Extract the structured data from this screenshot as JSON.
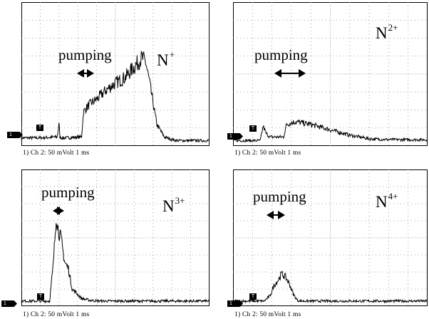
{
  "chart_data": [
    {
      "type": "line",
      "ion_label": "N",
      "charge": "+",
      "annotation": "pumping",
      "scale_text": "1) Ch 2:   50 mVolt  1 ms",
      "channel_marker": "1",
      "trigger_marker": "T",
      "xlim": [
        0,
        10
      ],
      "ylim": [
        0,
        8
      ],
      "x": [
        0,
        0.9,
        1.9,
        2.0,
        2.05,
        2.15,
        2.3,
        3.2,
        3.3,
        3.6,
        4.0,
        4.5,
        5.0,
        5.5,
        6.0,
        6.4,
        6.6,
        6.8,
        7.0,
        7.2,
        7.6,
        8.2,
        10
      ],
      "y": [
        0.45,
        0.45,
        0.5,
        1.2,
        0.5,
        0.45,
        0.45,
        0.5,
        1.9,
        2.3,
        2.6,
        3.1,
        3.5,
        3.8,
        4.4,
        4.9,
        4.7,
        3.6,
        2.4,
        1.2,
        0.5,
        0.3,
        0.3
      ]
    },
    {
      "type": "line",
      "ion_label": "N",
      "charge": "2+",
      "annotation": "pumping",
      "scale_text": "1) Ch 2:   50 mVolt  1 ms",
      "channel_marker": "1",
      "trigger_marker": "T",
      "xlim": [
        0,
        10
      ],
      "ylim": [
        0,
        8
      ],
      "x": [
        0,
        1.4,
        1.55,
        1.7,
        1.9,
        2.6,
        2.75,
        3.2,
        4.0,
        5.0,
        6.0,
        7.0,
        8.0,
        10
      ],
      "y": [
        0.3,
        0.3,
        1.1,
        0.7,
        0.5,
        0.5,
        1.2,
        1.35,
        1.2,
        0.9,
        0.6,
        0.4,
        0.35,
        0.35
      ]
    },
    {
      "type": "line",
      "ion_label": "N",
      "charge": "3+",
      "annotation": "pumping",
      "scale_text": "1) Ch 2:   50 mVolt  1 ms",
      "channel_marker": "1",
      "trigger_marker": "T",
      "xlim": [
        0,
        10
      ],
      "ylim": [
        0,
        8
      ],
      "x": [
        0,
        1.5,
        1.7,
        1.85,
        1.95,
        2.1,
        2.3,
        2.5,
        2.7,
        2.9,
        3.2,
        3.6,
        4.2,
        10
      ],
      "y": [
        0.3,
        0.3,
        2.5,
        5.3,
        4.5,
        4.0,
        2.6,
        2.2,
        1.0,
        0.8,
        0.45,
        0.35,
        0.3,
        0.3
      ]
    },
    {
      "type": "line",
      "ion_label": "N",
      "charge": "4+",
      "annotation": "pumping",
      "scale_text": "1) Ch 2:   50 mVolt  1 ms",
      "channel_marker": "1",
      "trigger_marker": "T",
      "xlim": [
        0,
        10
      ],
      "ylim": [
        0,
        8
      ],
      "x": [
        0,
        1.6,
        1.9,
        2.1,
        2.3,
        2.5,
        2.7,
        2.9,
        3.1,
        3.3,
        3.5,
        10
      ],
      "y": [
        0.3,
        0.3,
        0.6,
        1.2,
        1.5,
        1.9,
        1.7,
        1.3,
        0.7,
        0.35,
        0.3,
        0.3
      ]
    }
  ]
}
